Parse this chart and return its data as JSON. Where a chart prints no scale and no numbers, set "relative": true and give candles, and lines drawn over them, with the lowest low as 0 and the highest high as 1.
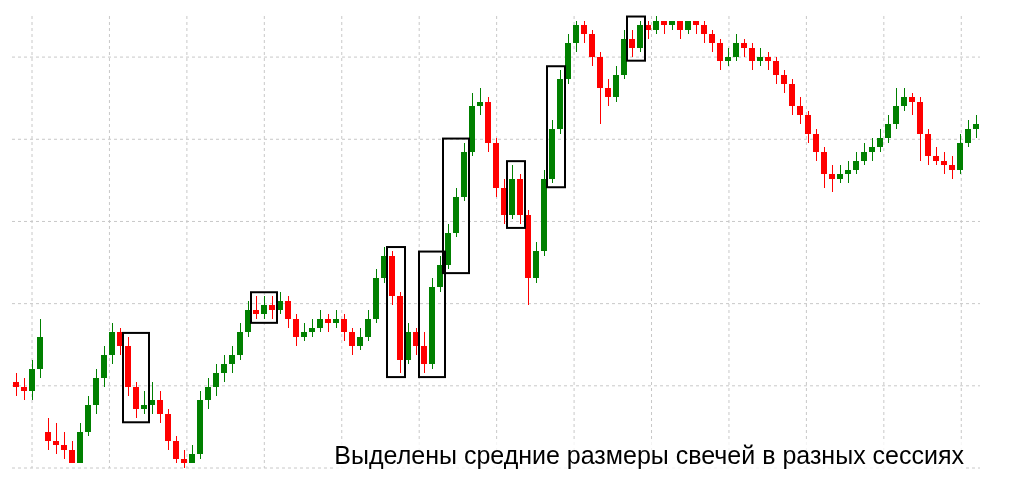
{
  "chart_data": {
    "type": "candlestick",
    "relative": true,
    "grid": true,
    "annotations": [
      "Выделены средние размеры свечей в разных сессиях"
    ],
    "categories": [
      null,
      null,
      null,
      null,
      null,
      null,
      null,
      null,
      null,
      null,
      null,
      null,
      null,
      null,
      null,
      null,
      null,
      null,
      null,
      null,
      null,
      null,
      null,
      null,
      null,
      null,
      null,
      null,
      null,
      null,
      null,
      null,
      null,
      null,
      null,
      null,
      null,
      null,
      null,
      null,
      null,
      null,
      null,
      null,
      null,
      null,
      null,
      null,
      null,
      null,
      null,
      null,
      null,
      null,
      null,
      null,
      null,
      null,
      null,
      null,
      null,
      null,
      null,
      null,
      null,
      null,
      null,
      null,
      null,
      null,
      null,
      null,
      null,
      null,
      null,
      null,
      null,
      null,
      null,
      null,
      null,
      null,
      null,
      null,
      null,
      null,
      null,
      null,
      null,
      null,
      null,
      null,
      null,
      null,
      null,
      null,
      null,
      null,
      null,
      null,
      null,
      null,
      null,
      null,
      null,
      null,
      null,
      null,
      null,
      null,
      null,
      null,
      null,
      null,
      null,
      null,
      null,
      null,
      null,
      null,
      null
    ],
    "ohlc": [
      [
        0.19,
        0.21,
        0.16,
        0.18
      ],
      [
        0.18,
        0.2,
        0.15,
        0.17
      ],
      [
        0.17,
        0.24,
        0.15,
        0.22
      ],
      [
        0.22,
        0.33,
        0.2,
        0.29
      ],
      [
        0.08,
        0.11,
        0.04,
        0.06
      ],
      [
        0.06,
        0.1,
        0.03,
        0.05
      ],
      [
        0.05,
        0.08,
        0.02,
        0.04
      ],
      [
        0.04,
        0.06,
        0.01,
        0.01
      ],
      [
        0.01,
        0.1,
        0.01,
        0.08
      ],
      [
        0.08,
        0.16,
        0.07,
        0.14
      ],
      [
        0.14,
        0.22,
        0.12,
        0.2
      ],
      [
        0.2,
        0.27,
        0.18,
        0.25
      ],
      [
        0.25,
        0.32,
        0.23,
        0.3
      ],
      [
        0.3,
        0.31,
        0.25,
        0.27
      ],
      [
        0.27,
        0.29,
        0.16,
        0.18
      ],
      [
        0.18,
        0.19,
        0.11,
        0.13
      ],
      [
        0.13,
        0.17,
        0.12,
        0.14
      ],
      [
        0.14,
        0.19,
        0.12,
        0.15
      ],
      [
        0.15,
        0.17,
        0.1,
        0.12
      ],
      [
        0.12,
        0.13,
        0.04,
        0.06
      ],
      [
        0.06,
        0.07,
        0.01,
        0.02
      ],
      [
        0.02,
        0.04,
        0,
        0.01
      ],
      [
        0.01,
        0.05,
        0.01,
        0.03
      ],
      [
        0.03,
        0.17,
        0.02,
        0.15
      ],
      [
        0.15,
        0.2,
        0.13,
        0.18
      ],
      [
        0.18,
        0.23,
        0.16,
        0.21
      ],
      [
        0.21,
        0.25,
        0.19,
        0.23
      ],
      [
        0.23,
        0.27,
        0.21,
        0.25
      ],
      [
        0.25,
        0.32,
        0.24,
        0.3
      ],
      [
        0.3,
        0.37,
        0.29,
        0.35
      ],
      [
        0.35,
        0.38,
        0.33,
        0.34
      ],
      [
        0.34,
        0.38,
        0.33,
        0.36
      ],
      [
        0.36,
        0.38,
        0.33,
        0.35
      ],
      [
        0.35,
        0.39,
        0.34,
        0.37
      ],
      [
        0.37,
        0.38,
        0.31,
        0.33
      ],
      [
        0.33,
        0.34,
        0.27,
        0.29
      ],
      [
        0.29,
        0.32,
        0.28,
        0.3
      ],
      [
        0.3,
        0.33,
        0.29,
        0.31
      ],
      [
        0.31,
        0.35,
        0.3,
        0.33
      ],
      [
        0.33,
        0.34,
        0.3,
        0.32
      ],
      [
        0.32,
        0.35,
        0.31,
        0.33
      ],
      [
        0.33,
        0.34,
        0.28,
        0.3
      ],
      [
        0.3,
        0.31,
        0.25,
        0.27
      ],
      [
        0.27,
        0.31,
        0.26,
        0.29
      ],
      [
        0.29,
        0.35,
        0.28,
        0.33
      ],
      [
        0.33,
        0.44,
        0.32,
        0.42
      ],
      [
        0.42,
        0.49,
        0.41,
        0.47
      ],
      [
        0.47,
        0.48,
        0.36,
        0.38
      ],
      [
        0.38,
        0.39,
        0.21,
        0.24
      ],
      [
        0.24,
        0.32,
        0.23,
        0.3
      ],
      [
        0.3,
        0.31,
        0.25,
        0.27
      ],
      [
        0.27,
        0.3,
        0.21,
        0.23
      ],
      [
        0.23,
        0.42,
        0.22,
        0.4
      ],
      [
        0.4,
        0.47,
        0.39,
        0.45
      ],
      [
        0.45,
        0.54,
        0.44,
        0.52
      ],
      [
        0.52,
        0.62,
        0.51,
        0.6
      ],
      [
        0.6,
        0.72,
        0.59,
        0.7
      ],
      [
        0.7,
        0.83,
        0.69,
        0.8
      ],
      [
        0.8,
        0.84,
        0.78,
        0.81
      ],
      [
        0.81,
        0.82,
        0.7,
        0.72
      ],
      [
        0.72,
        0.73,
        0.6,
        0.62
      ],
      [
        0.62,
        0.64,
        0.54,
        0.56
      ],
      [
        0.56,
        0.67,
        0.55,
        0.64
      ],
      [
        0.64,
        0.65,
        0.54,
        0.56
      ],
      [
        0.56,
        0.57,
        0.36,
        0.42
      ],
      [
        0.42,
        0.5,
        0.41,
        0.48
      ],
      [
        0.48,
        0.66,
        0.47,
        0.64
      ],
      [
        0.64,
        0.77,
        0.63,
        0.75
      ],
      [
        0.75,
        0.88,
        0.74,
        0.86
      ],
      [
        0.86,
        0.96,
        0.85,
        0.94
      ],
      [
        0.94,
        0.99,
        0.92,
        0.98
      ],
      [
        0.98,
        0.99,
        0.94,
        0.96
      ],
      [
        0.96,
        0.97,
        0.89,
        0.91
      ],
      [
        0.91,
        0.92,
        0.76,
        0.84
      ],
      [
        0.84,
        0.86,
        0.8,
        0.82
      ],
      [
        0.82,
        0.89,
        0.81,
        0.87
      ],
      [
        0.87,
        0.97,
        0.86,
        0.95
      ],
      [
        0.95,
        0.97,
        0.91,
        0.93
      ],
      [
        0.93,
        0.99,
        0.92,
        0.98
      ],
      [
        0.98,
        0.99,
        0.95,
        0.97
      ],
      [
        0.97,
        1,
        0.96,
        0.99
      ],
      [
        0.99,
        0.99,
        0.96,
        0.98
      ],
      [
        0.98,
        0.99,
        0.97,
        0.99
      ],
      [
        0.99,
        0.99,
        0.95,
        0.97
      ],
      [
        0.97,
        0.99,
        0.96,
        0.99
      ],
      [
        0.99,
        0.99,
        0.96,
        0.98
      ],
      [
        0.98,
        0.99,
        0.94,
        0.96
      ],
      [
        0.96,
        0.97,
        0.92,
        0.94
      ],
      [
        0.94,
        0.95,
        0.88,
        0.9
      ],
      [
        0.9,
        0.93,
        0.89,
        0.91
      ],
      [
        0.91,
        0.96,
        0.9,
        0.94
      ],
      [
        0.94,
        0.95,
        0.91,
        0.93
      ],
      [
        0.93,
        0.94,
        0.88,
        0.9
      ],
      [
        0.9,
        0.93,
        0.89,
        0.91
      ],
      [
        0.91,
        0.92,
        0.88,
        0.9
      ],
      [
        0.9,
        0.91,
        0.85,
        0.87
      ],
      [
        0.87,
        0.88,
        0.83,
        0.85
      ],
      [
        0.85,
        0.86,
        0.78,
        0.8
      ],
      [
        0.8,
        0.82,
        0.76,
        0.78
      ],
      [
        0.78,
        0.79,
        0.72,
        0.74
      ],
      [
        0.74,
        0.75,
        0.68,
        0.7
      ],
      [
        0.7,
        0.71,
        0.62,
        0.65
      ],
      [
        0.65,
        0.67,
        0.61,
        0.64
      ],
      [
        0.64,
        0.67,
        0.63,
        0.65
      ],
      [
        0.65,
        0.68,
        0.63,
        0.66
      ],
      [
        0.66,
        0.7,
        0.65,
        0.68
      ],
      [
        0.68,
        0.72,
        0.67,
        0.7
      ],
      [
        0.7,
        0.73,
        0.68,
        0.71
      ],
      [
        0.71,
        0.75,
        0.7,
        0.73
      ],
      [
        0.73,
        0.78,
        0.72,
        0.76
      ],
      [
        0.76,
        0.84,
        0.75,
        0.8
      ],
      [
        0.8,
        0.84,
        0.79,
        0.82
      ],
      [
        0.82,
        0.83,
        0.78,
        0.81
      ],
      [
        0.81,
        0.82,
        0.68,
        0.74
      ],
      [
        0.74,
        0.75,
        0.67,
        0.69
      ],
      [
        0.69,
        0.71,
        0.67,
        0.68
      ],
      [
        0.68,
        0.7,
        0.65,
        0.67
      ],
      [
        0.67,
        0.69,
        0.64,
        0.66
      ],
      [
        0.66,
        0.74,
        0.65,
        0.72
      ],
      [
        0.72,
        0.77,
        0.71,
        0.75
      ],
      [
        0.75,
        0.78,
        0.73,
        0.76
      ]
    ]
  }
}
